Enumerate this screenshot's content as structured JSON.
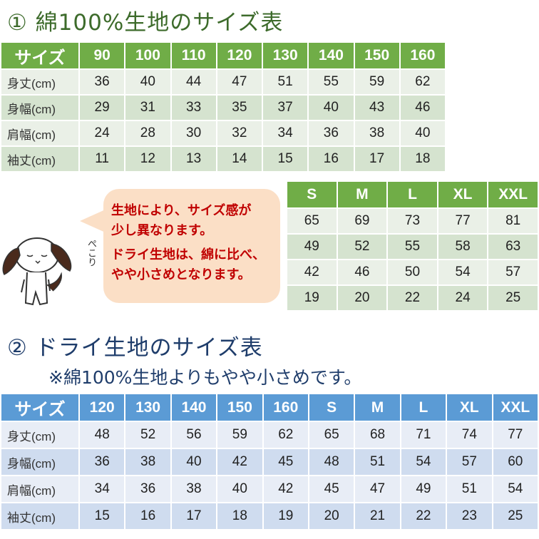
{
  "section1": {
    "title": "① 綿100%生地のサイズ表",
    "header": [
      "サイズ",
      "90",
      "100",
      "110",
      "120",
      "130",
      "140",
      "150",
      "160"
    ],
    "rows": [
      [
        "身丈(cm)",
        "36",
        "40",
        "44",
        "47",
        "51",
        "55",
        "59",
        "62"
      ],
      [
        "身幅(cm)",
        "29",
        "31",
        "33",
        "35",
        "37",
        "40",
        "43",
        "46"
      ],
      [
        "肩幅(cm)",
        "24",
        "28",
        "30",
        "32",
        "34",
        "36",
        "38",
        "40"
      ],
      [
        "袖丈(cm)",
        "11",
        "12",
        "13",
        "14",
        "15",
        "16",
        "17",
        "18"
      ]
    ],
    "adult_header": [
      "S",
      "M",
      "L",
      "XL",
      "XXL"
    ],
    "adult_rows": [
      [
        "65",
        "69",
        "73",
        "77",
        "81"
      ],
      [
        "49",
        "52",
        "55",
        "58",
        "63"
      ],
      [
        "42",
        "46",
        "50",
        "54",
        "57"
      ],
      [
        "19",
        "20",
        "22",
        "24",
        "25"
      ]
    ],
    "header_color": "#70ad47"
  },
  "bubble": {
    "lines": [
      "生地により、サイズ感が",
      "少し異なります。",
      "ドライ生地は、綿に比べ、",
      "やや小さめとなります。"
    ],
    "color": "#c00000",
    "mascot_text": "ぺこり"
  },
  "section2": {
    "title": "② ドライ生地のサイズ表",
    "subtitle": "※綿100%生地よりもやや小さめです。",
    "header": [
      "サイズ",
      "120",
      "130",
      "140",
      "150",
      "160",
      "S",
      "M",
      "L",
      "XL",
      "XXL"
    ],
    "rows": [
      [
        "身丈(cm)",
        "48",
        "52",
        "56",
        "59",
        "62",
        "65",
        "68",
        "71",
        "74",
        "77"
      ],
      [
        "身幅(cm)",
        "36",
        "38",
        "40",
        "42",
        "45",
        "48",
        "51",
        "54",
        "57",
        "60"
      ],
      [
        "肩幅(cm)",
        "34",
        "36",
        "38",
        "40",
        "42",
        "45",
        "47",
        "49",
        "51",
        "54"
      ],
      [
        "袖丈(cm)",
        "15",
        "16",
        "17",
        "18",
        "19",
        "20",
        "21",
        "22",
        "23",
        "25"
      ]
    ],
    "header_color": "#5b9bd5"
  }
}
